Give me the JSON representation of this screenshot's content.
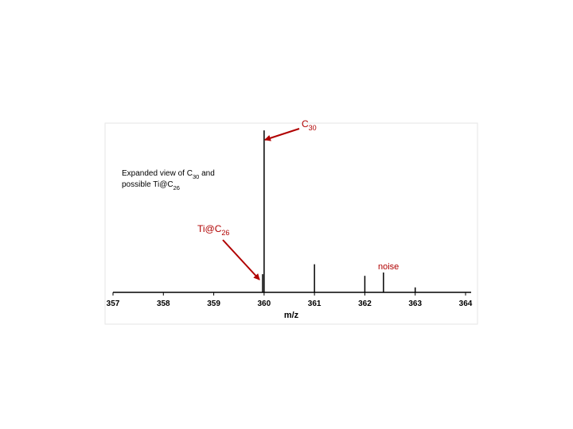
{
  "chart_data": {
    "type": "stem",
    "x_label": "m/z",
    "x": [
      359.97,
      360.0,
      361.0,
      362.0,
      362.37,
      363.0
    ],
    "values": [
      11,
      98,
      17,
      10,
      12,
      3
    ],
    "color": "#000000",
    "xlim": [
      357,
      364
    ],
    "xticks": [
      357,
      358,
      359,
      360,
      361,
      362,
      363,
      364
    ],
    "ylim": [
      0,
      100
    ],
    "annotations": [
      {
        "lines": [
          [
            "C",
            "30"
          ]
        ],
        "color": "#b00000",
        "point": 1
      },
      {
        "lines": [
          [
            "Expanded view of C",
            "30",
            " and"
          ],
          [
            "possible Ti@C",
            "26"
          ]
        ],
        "color": "#000000"
      },
      {
        "lines": [
          [
            "Ti@C",
            "26"
          ]
        ],
        "color": "#b00000",
        "point": 0
      },
      {
        "lines": [
          [
            "noise"
          ]
        ],
        "color": "#b00000",
        "point": 4
      }
    ]
  }
}
